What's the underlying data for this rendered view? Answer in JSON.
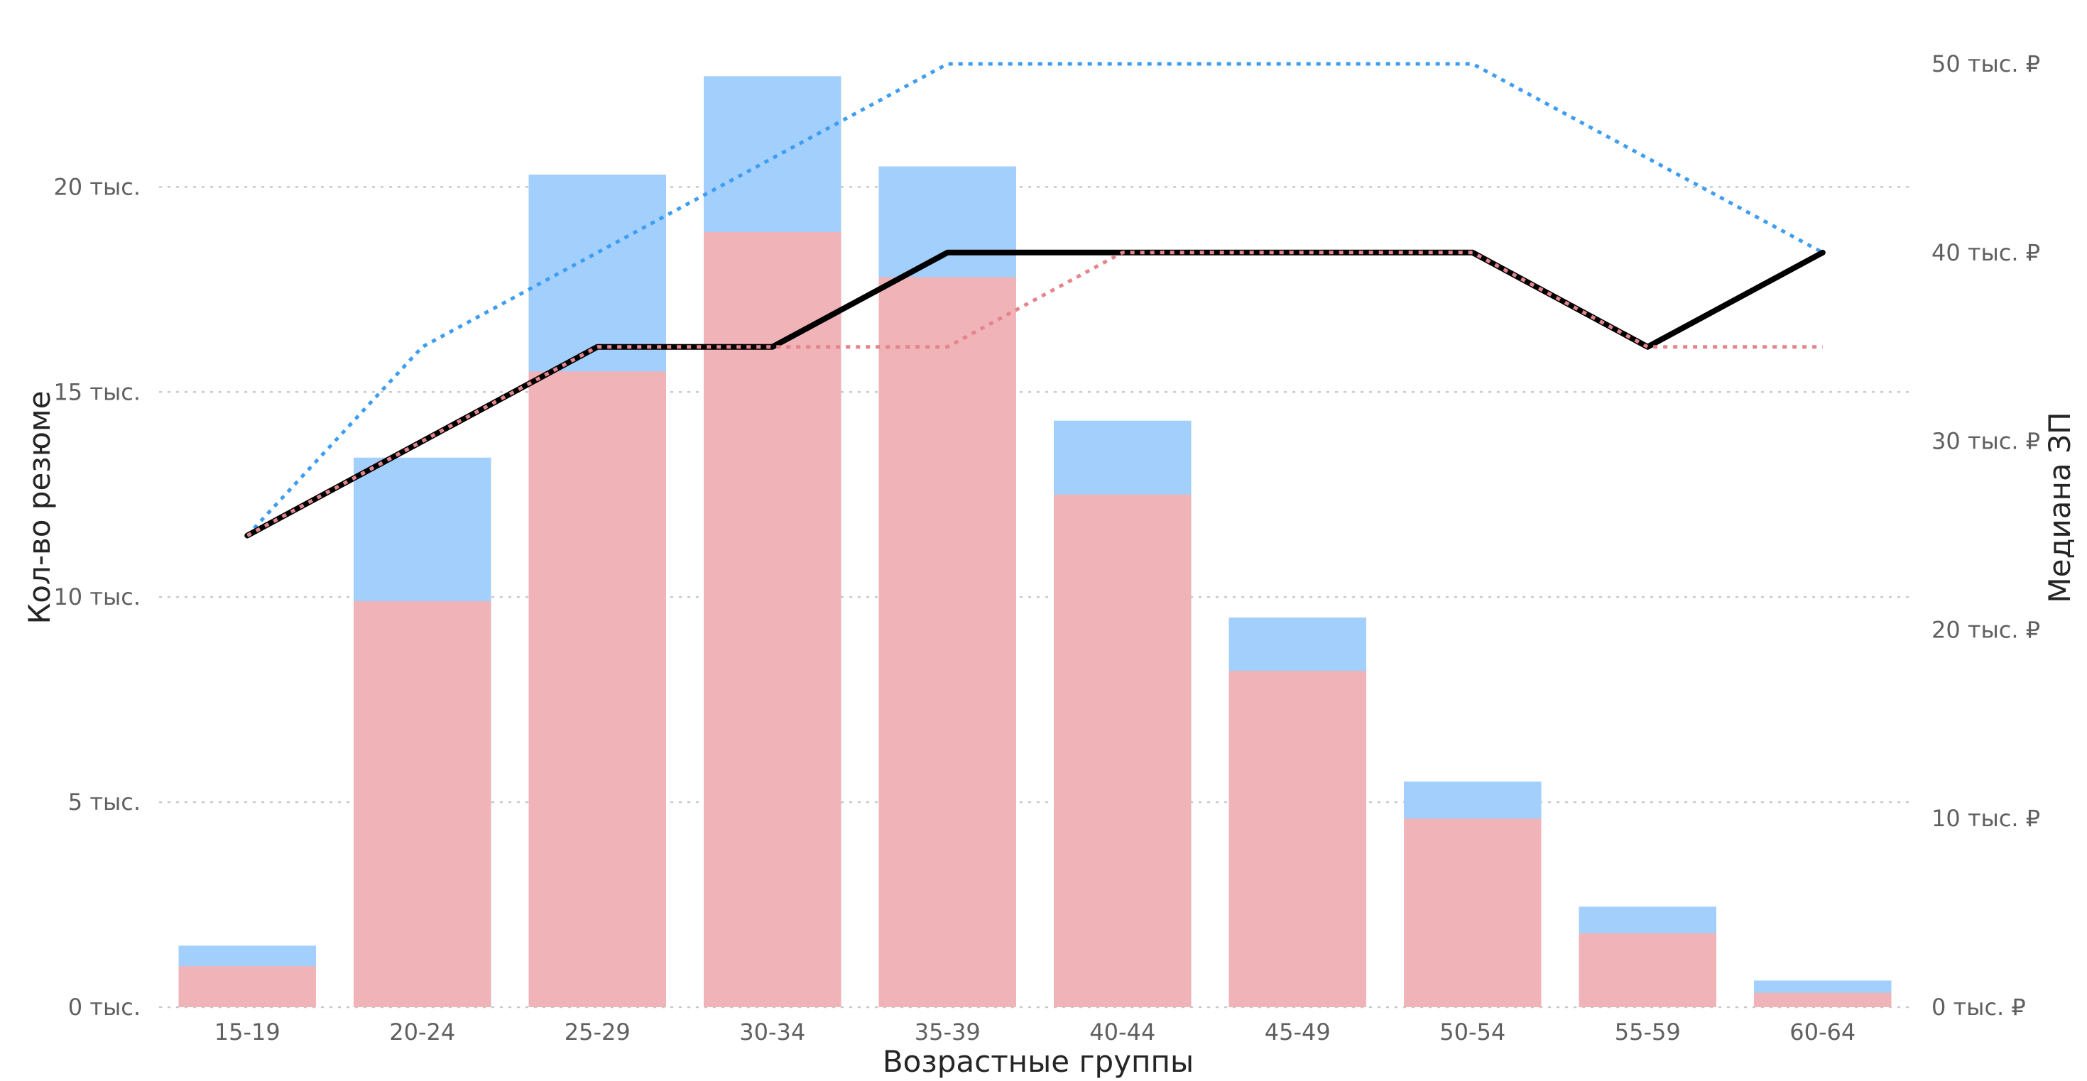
{
  "chart_data": {
    "type": "bar",
    "xlabel": "Возрастные группы",
    "ylabel": "Кол-во резюме",
    "y2label": "Медиана ЗП",
    "categories": [
      "15-19",
      "20-24",
      "25-29",
      "30-34",
      "35-39",
      "40-44",
      "45-49",
      "50-54",
      "55-59",
      "60-64"
    ],
    "ylim": [
      0,
      23000
    ],
    "y2lim": [
      0,
      50000
    ],
    "yticks": [
      {
        "value": 0,
        "label": "0 тыс."
      },
      {
        "value": 5000,
        "label": "5 тыс."
      },
      {
        "value": 10000,
        "label": "10 тыс."
      },
      {
        "value": 15000,
        "label": "15 тыс."
      },
      {
        "value": 20000,
        "label": "20 тыс."
      }
    ],
    "y2ticks": [
      {
        "value": 0,
        "label": "0 тыс. ₽"
      },
      {
        "value": 10000,
        "label": "10 тыс. ₽"
      },
      {
        "value": 20000,
        "label": "20 тыс. ₽"
      },
      {
        "value": 30000,
        "label": "30 тыс. ₽"
      },
      {
        "value": 40000,
        "label": "40 тыс. ₽"
      },
      {
        "value": 50000,
        "label": "50 тыс. ₽"
      }
    ],
    "grid": true,
    "bar_series": [
      {
        "color": "#efb3b8",
        "values": [
          1000,
          9900,
          15500,
          18900,
          17800,
          12500,
          8200,
          4600,
          1800,
          350
        ]
      },
      {
        "color": "#a2cffc",
        "values": [
          1500,
          13400,
          20300,
          22700,
          20500,
          14300,
          9500,
          5500,
          2450,
          650
        ]
      }
    ],
    "line_series": [
      {
        "color": "#3d9df2",
        "style": "dotted",
        "values": [
          25000,
          35000,
          40000,
          45000,
          50000,
          50000,
          50000,
          50000,
          45000,
          40000
        ]
      },
      {
        "color": "#000000",
        "style": "solid",
        "values": [
          25000,
          30000,
          35000,
          35000,
          40000,
          40000,
          40000,
          40000,
          35000,
          40000
        ]
      },
      {
        "color": "#e6848c",
        "style": "dotted",
        "values": [
          25000,
          30000,
          35000,
          35000,
          35000,
          40000,
          40000,
          40000,
          35000,
          35000
        ]
      }
    ]
  }
}
